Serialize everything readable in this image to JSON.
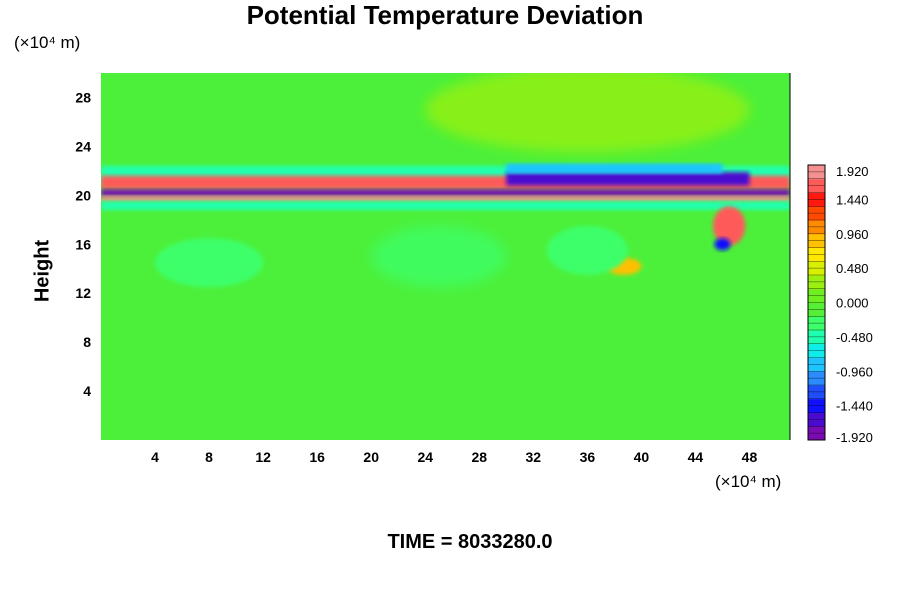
{
  "chart_data": {
    "type": "heatmap",
    "title": "Potential Temperature Deviation",
    "xlabel": "",
    "ylabel": "Height",
    "x_unit_label": "(×10⁴ m)",
    "y_unit_label": "(×10⁴ m)",
    "xlim": [
      0,
      51
    ],
    "ylim": [
      0,
      30
    ],
    "x_ticks": [
      4,
      8,
      12,
      16,
      20,
      24,
      28,
      32,
      36,
      40,
      44,
      48
    ],
    "y_ticks": [
      4,
      8,
      12,
      16,
      20,
      24,
      28
    ],
    "colorbar": {
      "range": [
        -1.92,
        1.92
      ],
      "tick_values": [
        1.92,
        1.44,
        0.96,
        0.48,
        0.0,
        -0.48,
        -0.96,
        -1.44,
        -1.92
      ],
      "tick_labels": [
        "1.920",
        "1.440",
        "0.960",
        "0.480",
        "0.000",
        "-0.480",
        "-0.960",
        "-1.440",
        "-1.920"
      ],
      "colors": [
        "#7a0bb0",
        "#4a0ad0",
        "#1010ff",
        "#1f4dff",
        "#2a8cff",
        "#1fc4ff",
        "#10ecea",
        "#20ffb0",
        "#3dff6a",
        "#55f035",
        "#6ef020",
        "#9cf010",
        "#d8f000",
        "#ffe800",
        "#ffc000",
        "#ff8a00",
        "#ff4a00",
        "#ff1a10",
        "#ff5a5a",
        "#f49090"
      ],
      "grid": false
    },
    "background_color": "#4cf03a",
    "features": [
      {
        "kind": "band",
        "x": [
          0,
          51
        ],
        "y": [
          21.0,
          22.4
        ],
        "value": -0.45
      },
      {
        "kind": "band",
        "x": [
          0,
          51
        ],
        "y": [
          20.5,
          21.6
        ],
        "value": 1.6
      },
      {
        "kind": "band",
        "x": [
          0,
          51
        ],
        "y": [
          19.9,
          20.5
        ],
        "value": -1.9
      },
      {
        "kind": "band",
        "x": [
          0,
          51
        ],
        "y": [
          19.5,
          19.95
        ],
        "value": 1.9
      },
      {
        "kind": "band",
        "x": [
          0,
          51
        ],
        "y": [
          18.8,
          19.5
        ],
        "value": -0.45
      },
      {
        "kind": "band",
        "x": [
          30,
          48
        ],
        "y": [
          20.8,
          21.9
        ],
        "value": -1.7
      },
      {
        "kind": "band",
        "x": [
          30,
          46
        ],
        "y": [
          21.8,
          22.6
        ],
        "value": -0.9
      },
      {
        "kind": "blob",
        "x": 46.5,
        "y": 17.5,
        "rx": 1.2,
        "ry": 1.6,
        "value": 1.7
      },
      {
        "kind": "blob",
        "x": 46.0,
        "y": 16.0,
        "rx": 0.6,
        "ry": 0.5,
        "value": -1.5
      },
      {
        "kind": "blob",
        "x": 38.7,
        "y": 14.2,
        "rx": 1.3,
        "ry": 0.7,
        "value": 0.85
      },
      {
        "kind": "blob",
        "x": 36.0,
        "y": 15.5,
        "rx": 3.0,
        "ry": 2.0,
        "value": -0.35
      },
      {
        "kind": "blob",
        "x": 25.0,
        "y": 15.0,
        "rx": 5.0,
        "ry": 2.5,
        "value": -0.25
      },
      {
        "kind": "blob",
        "x": 8.0,
        "y": 14.5,
        "rx": 4.0,
        "ry": 2.0,
        "value": -0.25
      },
      {
        "kind": "blob",
        "x": 36.0,
        "y": 27.0,
        "rx": 12.0,
        "ry": 3.5,
        "value": 0.22
      }
    ]
  },
  "time_label": "TIME = 8033280.0"
}
